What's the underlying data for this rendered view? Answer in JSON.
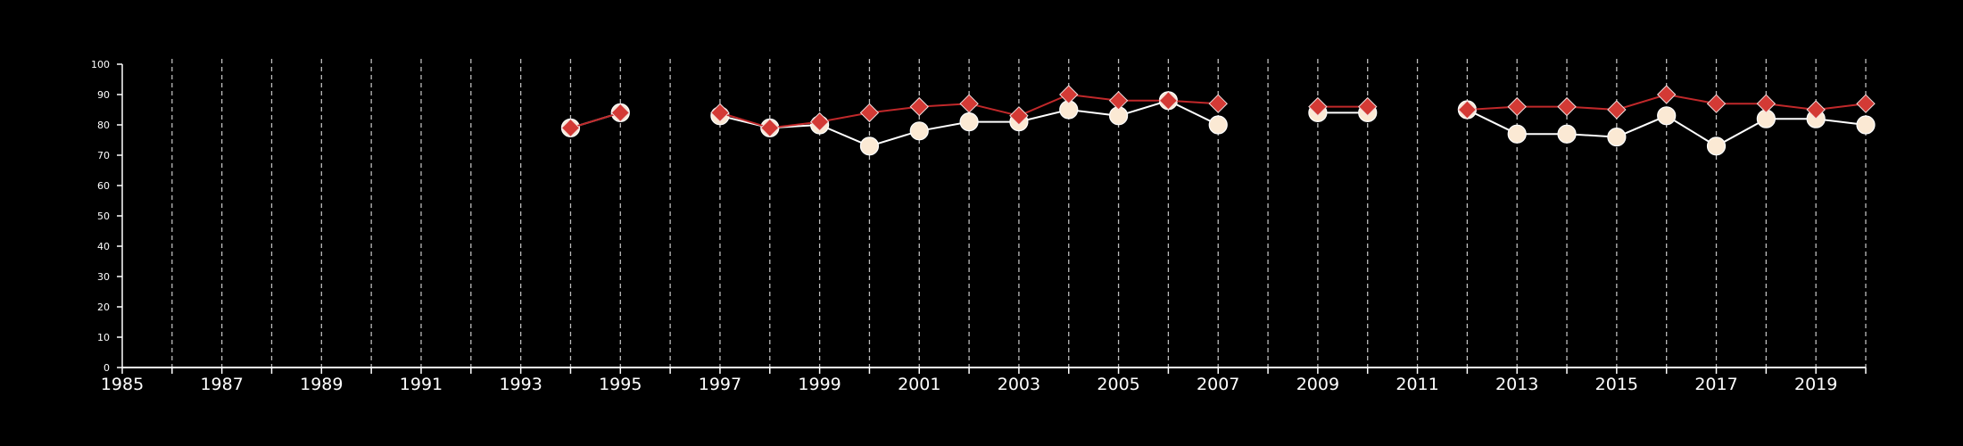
{
  "chart_data": {
    "type": "line",
    "title": "",
    "xlabel": "",
    "ylabel": "",
    "xlim": [
      1985,
      2020
    ],
    "ylim": [
      0,
      100
    ],
    "x_ticks": [
      1985,
      1987,
      1989,
      1991,
      1993,
      1995,
      1997,
      1999,
      2001,
      2003,
      2005,
      2007,
      2009,
      2011,
      2013,
      2015,
      2017,
      2019
    ],
    "y_ticks": [
      0,
      10,
      20,
      30,
      40,
      50,
      60,
      70,
      80,
      90,
      100
    ],
    "grid": "vertical dashed lines at each year",
    "background": "#000000",
    "series": [
      {
        "marker": "circle",
        "line_color": "#ffffff",
        "marker_color": "#fbe9d4",
        "points": [
          [
            1994,
            79
          ],
          [
            1995,
            84
          ],
          [
            null,
            null
          ],
          [
            1997,
            83
          ],
          [
            1998,
            79
          ],
          [
            1999,
            80
          ],
          [
            2000,
            73
          ],
          [
            2001,
            78
          ],
          [
            2002,
            81
          ],
          [
            2003,
            81
          ],
          [
            2004,
            85
          ],
          [
            2005,
            83
          ],
          [
            2006,
            88
          ],
          [
            2007,
            80
          ],
          [
            null,
            null
          ],
          [
            2009,
            84
          ],
          [
            2010,
            84
          ],
          [
            null,
            null
          ],
          [
            2012,
            85
          ],
          [
            2013,
            77
          ],
          [
            2014,
            77
          ],
          [
            2015,
            76
          ],
          [
            2016,
            83
          ],
          [
            2017,
            73
          ],
          [
            2018,
            82
          ],
          [
            2019,
            82
          ],
          [
            2020,
            80
          ]
        ]
      },
      {
        "marker": "diamond",
        "line_color": "#c0282a",
        "marker_color": "#d33a35",
        "points": [
          [
            1994,
            79
          ],
          [
            1995,
            84
          ],
          [
            null,
            null
          ],
          [
            1997,
            84
          ],
          [
            1998,
            79
          ],
          [
            1999,
            81
          ],
          [
            2000,
            84
          ],
          [
            2001,
            86
          ],
          [
            2002,
            87
          ],
          [
            2003,
            83
          ],
          [
            2004,
            90
          ],
          [
            2005,
            88
          ],
          [
            2006,
            88
          ],
          [
            2007,
            87
          ],
          [
            null,
            null
          ],
          [
            2009,
            86
          ],
          [
            2010,
            86
          ],
          [
            null,
            null
          ],
          [
            2012,
            85
          ],
          [
            2013,
            86
          ],
          [
            2014,
            86
          ],
          [
            2015,
            85
          ],
          [
            2016,
            90
          ],
          [
            2017,
            87
          ],
          [
            2018,
            87
          ],
          [
            2019,
            85
          ],
          [
            2020,
            87
          ]
        ]
      }
    ]
  }
}
